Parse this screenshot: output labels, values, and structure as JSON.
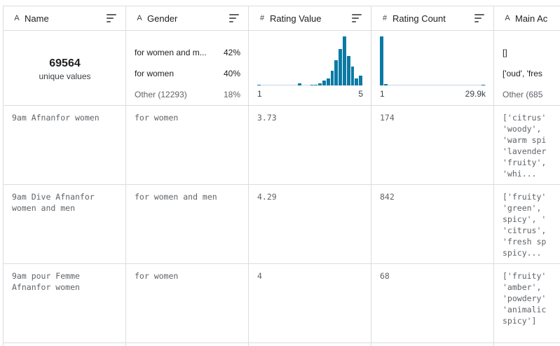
{
  "columns": [
    {
      "type_icon": "A",
      "name": "Name"
    },
    {
      "type_icon": "A",
      "name": "Gender"
    },
    {
      "type_icon": "#",
      "name": "Rating Value"
    },
    {
      "type_icon": "#",
      "name": "Rating Count"
    },
    {
      "type_icon": "A",
      "name": "Main Ac"
    }
  ],
  "summary": {
    "name": {
      "unique_count": "69564",
      "unique_label": "unique values"
    },
    "gender": {
      "items": [
        {
          "label": "for women and m...",
          "pct": "42%"
        },
        {
          "label": "for women",
          "pct": "40%"
        },
        {
          "label": "Other (12293)",
          "pct": "18%"
        }
      ]
    },
    "rating_value": {
      "min_label": "1",
      "max_label": "5",
      "histogram": [
        0.02,
        0,
        0,
        0,
        0,
        0,
        0,
        0,
        0,
        0,
        0.04,
        0,
        0,
        0.02,
        0.02,
        0.04,
        0.1,
        0.14,
        0.3,
        0.52,
        0.74,
        1.0,
        0.6,
        0.38,
        0.14,
        0.2
      ]
    },
    "rating_count": {
      "min_label": "1",
      "max_label": "29.9k",
      "histogram": [
        1.0,
        0.03,
        0,
        0,
        0,
        0,
        0,
        0,
        0,
        0,
        0,
        0,
        0,
        0,
        0,
        0,
        0,
        0,
        0,
        0,
        0,
        0,
        0,
        0,
        0,
        0.01
      ]
    },
    "main_accords": {
      "items": [
        {
          "label": "[]"
        },
        {
          "label": "['oud', 'fres"
        },
        {
          "label": "Other (685"
        }
      ]
    }
  },
  "rows": [
    {
      "name": "9am Afnanfor women",
      "gender": "for women",
      "rating_value": "3.73",
      "rating_count": "174",
      "main_accords": "['citrus'\n'woody',\n'warm spi\n'lavender\n'fruity',\n'whi..."
    },
    {
      "name": "9am Dive Afnanfor\nwomen and men",
      "gender": "for women and men",
      "rating_value": "4.29",
      "rating_count": "842",
      "main_accords": "['fruity'\n'green',\nspicy', '\n'citrus',\n'fresh sp\nspicy..."
    },
    {
      "name": "9am pour Femme\nAfnanfor women",
      "gender": "for women",
      "rating_value": "4",
      "rating_count": "68",
      "main_accords": "['fruity'\n'amber',\n'powdery'\n'animalic\nspicy']"
    }
  ]
}
